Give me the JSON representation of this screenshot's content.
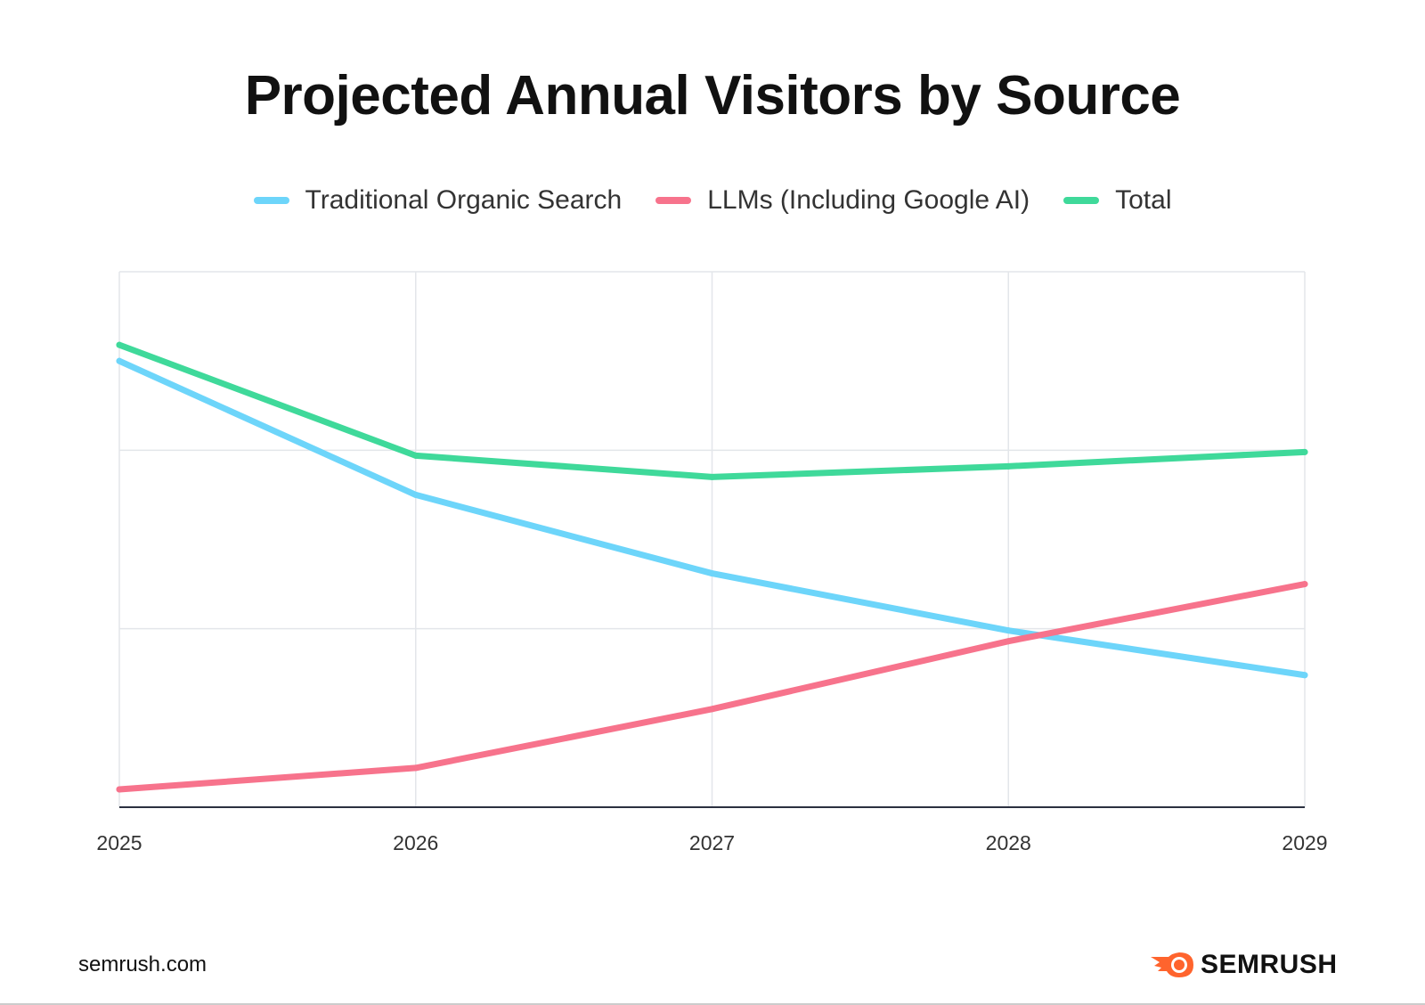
{
  "chart_data": {
    "type": "line",
    "title": "Projected Annual Visitors by Source",
    "x": [
      "2025",
      "2026",
      "2027",
      "2028",
      "2029"
    ],
    "ylim": [
      0,
      3
    ],
    "y_tick_labels": false,
    "grid": true,
    "legend_position": "top",
    "series": [
      {
        "name": "Traditional Organic Search",
        "color": "#6dd5fa",
        "values": [
          2.5,
          1.75,
          1.31,
          0.99,
          0.74
        ]
      },
      {
        "name": "LLMs (Including Google AI)",
        "color": "#f7738c",
        "values": [
          0.1,
          0.22,
          0.55,
          0.93,
          1.25
        ]
      },
      {
        "name": "Total",
        "color": "#3fd99a",
        "values": [
          2.59,
          1.97,
          1.85,
          1.91,
          1.99
        ]
      }
    ]
  },
  "footer": {
    "site": "semrush.com",
    "brand": "SEMRUSH",
    "brand_color": "#ff642d"
  }
}
